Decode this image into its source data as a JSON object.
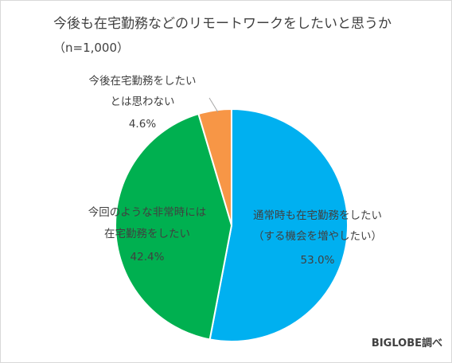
{
  "chart_data": {
    "type": "pie",
    "title": "今後も在宅勤務などのリモートワークをしたいと思うか",
    "subtitle": "（n=1,000）",
    "slices": [
      {
        "label_lines": [
          "通常時も在宅勤務をしたい",
          "（する機会を増やしたい）"
        ],
        "value": 53.0,
        "value_label": "53.0%",
        "color": "#00b0f0"
      },
      {
        "label_lines": [
          "今回のような非常時には",
          "在宅勤務をしたい"
        ],
        "value": 42.4,
        "value_label": "42.4%",
        "color": "#00b050"
      },
      {
        "label_lines": [
          "今後在宅勤務をしたい",
          "とは思わない"
        ],
        "value": 4.6,
        "value_label": "4.6%",
        "color": "#f79646"
      }
    ],
    "start_angle_deg": 0,
    "direction": "clockwise",
    "source": "BIGLOBE調べ"
  }
}
